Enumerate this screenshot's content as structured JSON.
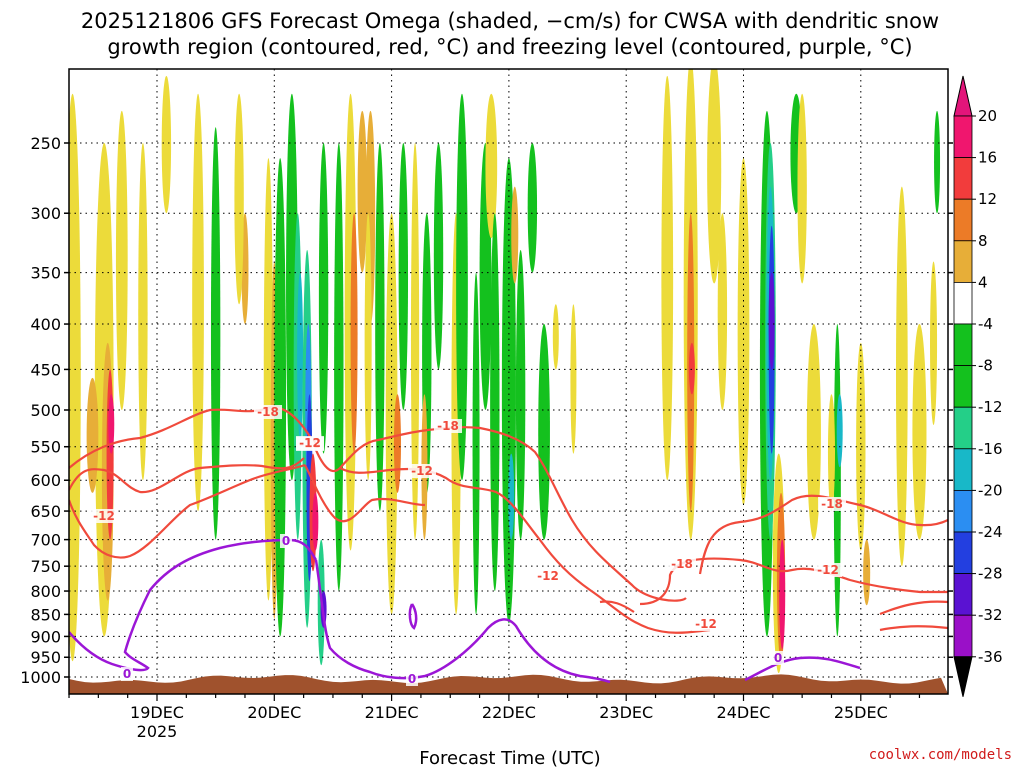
{
  "title_lines": [
    "2025121806 GFS Forecast Omega (shaded, −cm/s) for CWSA with dendritic snow",
    "growth region (contoured, red, °C) and freezing level (contoured, purple, °C)"
  ],
  "credit": "coolwx.com/models",
  "chart_data": {
    "type": "heatmap",
    "xlabel": "Forecast Time (UTC)",
    "x_ticks": [
      "19DEC",
      "20DEC",
      "21DEC",
      "22DEC",
      "23DEC",
      "24DEC",
      "25DEC"
    ],
    "x_year": "2025",
    "y_ticks": [
      250,
      300,
      350,
      400,
      450,
      500,
      550,
      600,
      650,
      700,
      750,
      800,
      850,
      900,
      950,
      1000
    ],
    "y_range": [
      200,
      1020
    ],
    "y_scale": "log-pressure",
    "grid": true,
    "colorbar": {
      "labels": [
        "20",
        "16",
        "12",
        "8",
        "4",
        "-4",
        "-8",
        "-12",
        "-16",
        "-20",
        "-24",
        "-28",
        "-32",
        "-36"
      ],
      "colors": [
        "#f0166e",
        "#f23c3c",
        "#ec7b27",
        "#e7ae38",
        "#ecdb3a",
        "#ffffff",
        "#14c11e",
        "#24cf88",
        "#18b8c8",
        "#2b8ef2",
        "#233fe0",
        "#5a12d2",
        "#9a10c8",
        "#a9a9a9"
      ],
      "top_arrow_color": "#e3157a",
      "bottom_arrow_color": "#000000"
    },
    "contours": {
      "dendritic_color": "#f04a3c",
      "freezing_color": "#9b16d6",
      "dendritic_labels": [
        "-18",
        "-18",
        "-18",
        "-12",
        "-12",
        "-12",
        "-12",
        "-18",
        "-18",
        "-12",
        "-12"
      ],
      "freezing_labels": [
        "0",
        "0",
        "0",
        "0"
      ]
    },
    "terrain_color": "#a0522d"
  }
}
